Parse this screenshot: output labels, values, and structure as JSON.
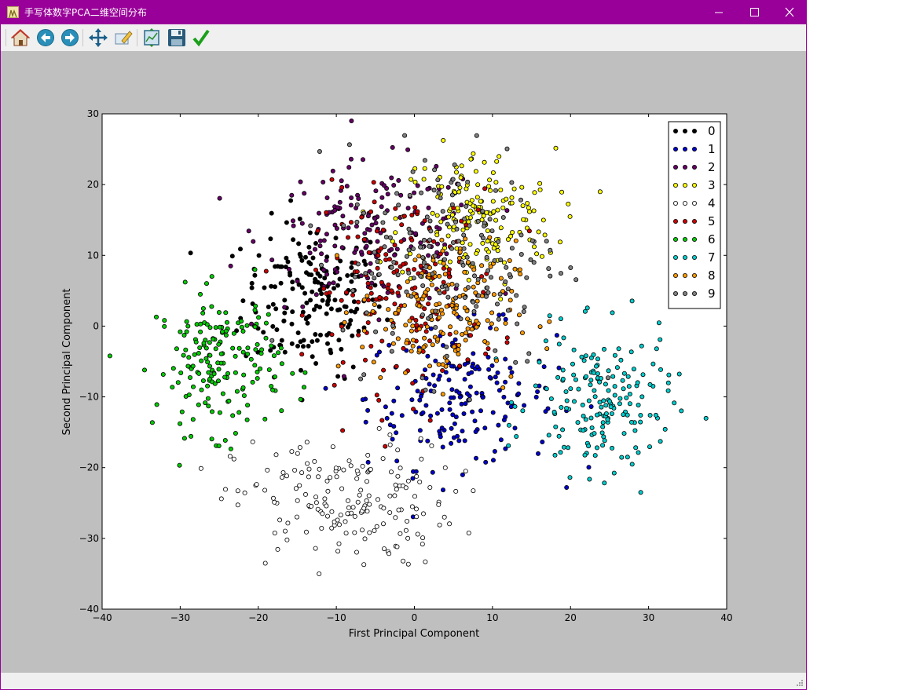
{
  "window": {
    "title": "手写体数字PCA二维空间分布",
    "title_bar_color": "#990099",
    "controls": [
      "minimize-icon",
      "maximize-icon",
      "close-icon"
    ]
  },
  "toolbar": {
    "buttons": [
      {
        "name": "home",
        "icon": "home-icon"
      },
      {
        "name": "back",
        "icon": "back-arrow-icon"
      },
      {
        "name": "forward",
        "icon": "forward-arrow-icon"
      },
      {
        "name": "pan",
        "icon": "move-arrows-icon"
      },
      {
        "name": "zoom",
        "icon": "zoom-rect-icon"
      },
      {
        "name": "configure-subplots",
        "icon": "subplots-icon"
      },
      {
        "name": "save",
        "icon": "floppy-disk-icon"
      },
      {
        "name": "edit-parameters",
        "icon": "checkmark-icon"
      }
    ]
  },
  "chart_data": {
    "type": "scatter",
    "title": "",
    "xlabel": "First Principal Component",
    "ylabel": "Second Principal Component",
    "xlim": [
      -40,
      40
    ],
    "ylim": [
      -40,
      30
    ],
    "xticks": [
      "−40",
      "−30",
      "−20",
      "−10",
      "0",
      "10",
      "20",
      "30",
      "40"
    ],
    "yticks": [
      "30",
      "20",
      "10",
      "0",
      "−10",
      "−20",
      "−30",
      "−40"
    ],
    "grid": false,
    "legend_position": "top-right",
    "series": [
      {
        "name": "0",
        "color": "#000000",
        "center": [
          -13,
          4
        ],
        "spread": [
          4.5,
          5.5
        ],
        "count": 180
      },
      {
        "name": "1",
        "color": "#0000cc",
        "center": [
          6,
          -10
        ],
        "spread": [
          6,
          5
        ],
        "count": 180
      },
      {
        "name": "2",
        "color": "#660066",
        "center": [
          -5,
          13
        ],
        "spread": [
          7,
          5
        ],
        "count": 175
      },
      {
        "name": "3",
        "color": "#ffff00",
        "center": [
          8,
          15
        ],
        "spread": [
          5,
          5
        ],
        "count": 180
      },
      {
        "name": "4",
        "color": "#ffffff",
        "center": [
          -9,
          -25
        ],
        "spread": [
          7,
          4.5
        ],
        "count": 180
      },
      {
        "name": "5",
        "color": "#cc0000",
        "center": [
          -1,
          5
        ],
        "spread": [
          6,
          7
        ],
        "count": 180
      },
      {
        "name": "6",
        "color": "#00cc00",
        "center": [
          -25,
          -5
        ],
        "spread": [
          4,
          5
        ],
        "count": 180
      },
      {
        "name": "7",
        "color": "#00cccc",
        "center": [
          24,
          -11
        ],
        "spread": [
          4.5,
          5
        ],
        "count": 180
      },
      {
        "name": "8",
        "color": "#ff9900",
        "center": [
          3,
          2
        ],
        "spread": [
          5,
          5
        ],
        "count": 175
      },
      {
        "name": "9",
        "color": "#808080",
        "center": [
          5,
          10
        ],
        "spread": [
          7,
          8
        ],
        "count": 180
      }
    ]
  }
}
